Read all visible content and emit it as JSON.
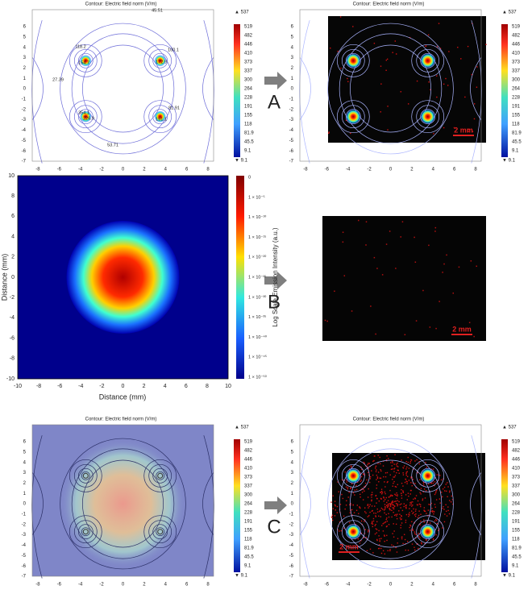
{
  "contour_axes": {
    "title": "Contour: Electric field norm (V/m)",
    "xticks": [
      "-8",
      "-6",
      "-4",
      "-2",
      "0",
      "2",
      "4",
      "6",
      "8"
    ],
    "yticks": [
      "6",
      "5",
      "4",
      "3",
      "2",
      "1",
      "0",
      "-1",
      "-2",
      "-3",
      "-4",
      "-5",
      "-6",
      "-7"
    ],
    "colorbar_max": "▲ 537",
    "colorbar_levels": [
      "519",
      "482",
      "446",
      "410",
      "373",
      "337",
      "300",
      "264",
      "228",
      "191",
      "155",
      "118",
      "81.9",
      "45.5",
      "9.1"
    ],
    "colorbar_min": "▼ 9.1"
  },
  "contour_labels": [
    "45.51",
    "118.2",
    "154.7",
    "100.1",
    "172.9",
    "27.39",
    "354.1",
    "226.9",
    "81.91",
    "191.1",
    "53.71"
  ],
  "letters": [
    "A",
    "B",
    "C"
  ],
  "scale_bar": "2 mm",
  "emission_map": {
    "xticks": [
      "-10",
      "-8",
      "-6",
      "-4",
      "-2",
      "0",
      "2",
      "4",
      "6",
      "8",
      "10"
    ],
    "yticks": [
      "10",
      "8",
      "6",
      "4",
      "2",
      "0",
      "-2",
      "-4",
      "-6",
      "-8",
      "-10"
    ],
    "xlabel": "Distance (mm)",
    "ylabel": "Distance (mm)",
    "colorbar_title": "Log Scale Emission Intensity (a.u.)",
    "colorbar_labels": [
      "0",
      "1 × 10⁻⁵",
      "1 × 10⁻¹⁰",
      "1 × 10⁻¹⁵",
      "1 × 10⁻²⁰",
      "1 × 10⁻²⁵",
      "1 × 10⁻³⁰",
      "1 × 10⁻³⁵",
      "1 × 10⁻⁴⁰",
      "1 × 10⁻⁴⁵",
      "1 × 10⁻⁵⁰"
    ]
  }
}
